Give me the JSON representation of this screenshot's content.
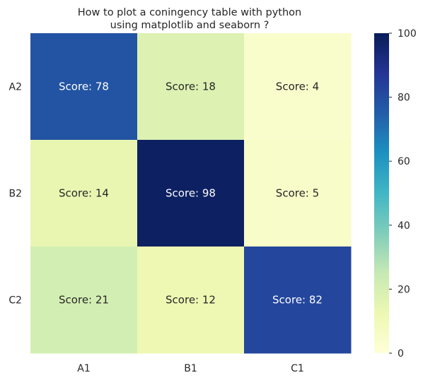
{
  "chart_data": {
    "type": "heatmap",
    "title": "How to plot a coningency table with python\nusing matplotlib and seaborn ?",
    "x_categories": [
      "A1",
      "B1",
      "C1"
    ],
    "y_categories": [
      "A2",
      "B2",
      "C2"
    ],
    "values": [
      [
        78,
        18,
        4
      ],
      [
        14,
        98,
        5
      ],
      [
        21,
        12,
        82
      ]
    ],
    "annotations": [
      [
        "Score: 78",
        "Score: 18",
        "Score: 4"
      ],
      [
        "Score: 14",
        "Score: 98",
        "Score: 5"
      ],
      [
        "Score: 21",
        "Score: 12",
        "Score: 82"
      ]
    ],
    "colormap": "YlGnBu",
    "vmin": 0,
    "vmax": 100,
    "colorbar_ticks": [
      0,
      20,
      40,
      60,
      80,
      100
    ],
    "colorbar_tick_labels": [
      "0",
      "20",
      "40",
      "60",
      "80",
      "100"
    ],
    "grid": false
  }
}
